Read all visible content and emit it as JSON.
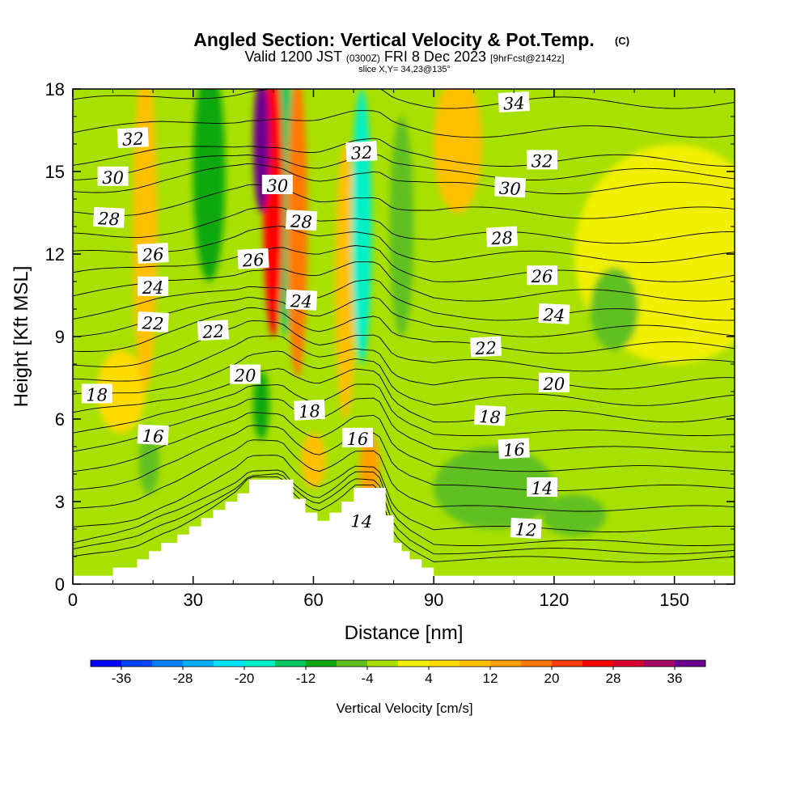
{
  "header": {
    "title": "Angled Section: Vertical Velocity & Pot.Temp.",
    "title_mark": "(C)",
    "valid_prefix": "Valid 1200 JST",
    "valid_utc": "(0300Z)",
    "valid_date": "FRI 8 Dec 2023",
    "forecast": "[9hrFcst@2142z]",
    "slice": "slice X,Y= 34,23@135°"
  },
  "chart_data": {
    "type": "heatmap",
    "xlabel": "Distance [nm]",
    "ylabel": "Height [Kft MSL]",
    "xlim": [
      0,
      165
    ],
    "ylim": [
      0,
      18
    ],
    "x_ticks": [
      0,
      30,
      60,
      90,
      120,
      150
    ],
    "y_ticks": [
      0,
      3,
      6,
      9,
      12,
      15,
      18
    ],
    "colorbar": {
      "label": "Vertical Velocity [cm/s]",
      "ticks": [
        -36,
        -28,
        -20,
        -12,
        -4,
        4,
        12,
        20,
        28,
        36
      ],
      "range": [
        -40,
        40
      ],
      "bins": [
        {
          "from": -40,
          "to": -36,
          "color": "#0000ff"
        },
        {
          "from": -36,
          "to": -32,
          "color": "#0044ff"
        },
        {
          "from": -32,
          "to": -28,
          "color": "#0080ff"
        },
        {
          "from": -28,
          "to": -24,
          "color": "#00b0ff"
        },
        {
          "from": -24,
          "to": -20,
          "color": "#00e4ff"
        },
        {
          "from": -20,
          "to": -16,
          "color": "#00f0c8"
        },
        {
          "from": -16,
          "to": -12,
          "color": "#00c860"
        },
        {
          "from": -12,
          "to": -8,
          "color": "#10a810"
        },
        {
          "from": -8,
          "to": -4,
          "color": "#60c020"
        },
        {
          "from": -4,
          "to": 0,
          "color": "#a8e000"
        },
        {
          "from": 0,
          "to": 4,
          "color": "#f0f000"
        },
        {
          "from": 4,
          "to": 8,
          "color": "#ffdc00"
        },
        {
          "from": 8,
          "to": 12,
          "color": "#ffc000"
        },
        {
          "from": 12,
          "to": 16,
          "color": "#ffa000"
        },
        {
          "from": 16,
          "to": 20,
          "color": "#ff7800"
        },
        {
          "from": 20,
          "to": 24,
          "color": "#ff3c00"
        },
        {
          "from": 24,
          "to": 28,
          "color": "#ff0000"
        },
        {
          "from": 28,
          "to": 32,
          "color": "#d80030"
        },
        {
          "from": 32,
          "to": 36,
          "color": "#a80060"
        },
        {
          "from": 36,
          "to": 40,
          "color": "#6a0090"
        }
      ]
    },
    "terrain_profile": [
      {
        "x": 0,
        "h": 0.3
      },
      {
        "x": 10,
        "h": 0.6
      },
      {
        "x": 16,
        "h": 0.9
      },
      {
        "x": 19,
        "h": 1.2
      },
      {
        "x": 22,
        "h": 1.5
      },
      {
        "x": 26,
        "h": 1.8
      },
      {
        "x": 29,
        "h": 2.1
      },
      {
        "x": 32,
        "h": 2.4
      },
      {
        "x": 35,
        "h": 2.7
      },
      {
        "x": 38,
        "h": 3.0
      },
      {
        "x": 41,
        "h": 3.3
      },
      {
        "x": 44,
        "h": 3.8
      },
      {
        "x": 52,
        "h": 3.8
      },
      {
        "x": 55,
        "h": 3.1
      },
      {
        "x": 58,
        "h": 2.6
      },
      {
        "x": 61,
        "h": 2.3
      },
      {
        "x": 64,
        "h": 2.6
      },
      {
        "x": 67,
        "h": 3.0
      },
      {
        "x": 70,
        "h": 3.5
      },
      {
        "x": 76,
        "h": 3.5
      },
      {
        "x": 78,
        "h": 2.5
      },
      {
        "x": 80,
        "h": 1.5
      },
      {
        "x": 82,
        "h": 1.2
      },
      {
        "x": 84,
        "h": 0.9
      },
      {
        "x": 87,
        "h": 0.6
      },
      {
        "x": 90,
        "h": 0.3
      },
      {
        "x": 165,
        "h": 0.3
      }
    ],
    "vertical_velocity_features": [
      {
        "x": 18,
        "h": 13,
        "wx": 3,
        "wh": 12,
        "value": 10
      },
      {
        "x": 50,
        "h": 14,
        "wx": 2.5,
        "wh": 10,
        "value": 24
      },
      {
        "x": 47,
        "h": 16,
        "wx": 2,
        "wh": 5,
        "value": 36
      },
      {
        "x": 56,
        "h": 13,
        "wx": 2.5,
        "wh": 11,
        "value": 18
      },
      {
        "x": 68,
        "h": 11,
        "wx": 2.5,
        "wh": 10,
        "value": 10
      },
      {
        "x": 34,
        "h": 15,
        "wx": 4,
        "wh": 8,
        "value": -12
      },
      {
        "x": 53,
        "h": 14,
        "wx": 2.3,
        "wh": 10,
        "value": -16
      },
      {
        "x": 72,
        "h": 13,
        "wx": 2.5,
        "wh": 10,
        "value": -20
      },
      {
        "x": 82,
        "h": 13,
        "wx": 3,
        "wh": 8,
        "value": -8
      },
      {
        "x": 47,
        "h": 6.5,
        "wx": 2,
        "wh": 2.5,
        "value": -10
      },
      {
        "x": 19,
        "h": 4.5,
        "wx": 2.5,
        "wh": 2.5,
        "value": -8
      },
      {
        "x": 60,
        "h": 4.5,
        "wx": 3,
        "wh": 2,
        "value": 8
      },
      {
        "x": 74,
        "h": 4.2,
        "wx": 2.5,
        "wh": 2.5,
        "value": 14
      },
      {
        "x": 96,
        "h": 16,
        "wx": 6,
        "wh": 5,
        "value": 8
      },
      {
        "x": 12,
        "h": 7,
        "wx": 6,
        "wh": 3,
        "value": 5
      },
      {
        "x": 135,
        "h": 10,
        "wx": 6,
        "wh": 3,
        "value": -6
      },
      {
        "x": 105,
        "h": 3.5,
        "wx": 15,
        "wh": 3,
        "value": -6
      },
      {
        "x": 125,
        "h": 2.5,
        "wx": 8,
        "wh": 1.5,
        "value": -5
      },
      {
        "x": 150,
        "h": 12,
        "wx": 25,
        "wh": 8,
        "value": 1
      }
    ],
    "potential_temperature_contours": [
      {
        "label": "12",
        "x": 113,
        "h": 2.0
      },
      {
        "label": "14",
        "x": 117,
        "h": 3.5
      },
      {
        "label": "16",
        "x": 110,
        "h": 4.9
      },
      {
        "label": "18",
        "x": 104,
        "h": 6.1
      },
      {
        "label": "20",
        "x": 120,
        "h": 7.3
      },
      {
        "label": "22",
        "x": 103,
        "h": 8.6
      },
      {
        "label": "24",
        "x": 120,
        "h": 9.8
      },
      {
        "label": "26",
        "x": 117,
        "h": 11.2
      },
      {
        "label": "28",
        "x": 107,
        "h": 12.6
      },
      {
        "label": "30",
        "x": 109,
        "h": 14.4
      },
      {
        "label": "32",
        "x": 117,
        "h": 15.4
      },
      {
        "label": "34",
        "x": 110,
        "h": 17.5
      }
    ],
    "contour_labels": [
      {
        "text": "32",
        "x": 15,
        "h": 16.2
      },
      {
        "text": "30",
        "x": 10,
        "h": 14.8
      },
      {
        "text": "28",
        "x": 9,
        "h": 13.3
      },
      {
        "text": "26",
        "x": 20,
        "h": 12.0
      },
      {
        "text": "24",
        "x": 20,
        "h": 10.8
      },
      {
        "text": "22",
        "x": 20,
        "h": 9.5
      },
      {
        "text": "22",
        "x": 35,
        "h": 9.2
      },
      {
        "text": "18",
        "x": 6,
        "h": 6.9
      },
      {
        "text": "16",
        "x": 20,
        "h": 5.4
      },
      {
        "text": "26",
        "x": 45,
        "h": 11.8
      },
      {
        "text": "30",
        "x": 51,
        "h": 14.5
      },
      {
        "text": "28",
        "x": 57,
        "h": 13.2
      },
      {
        "text": "32",
        "x": 72,
        "h": 15.7
      },
      {
        "text": "20",
        "x": 43,
        "h": 7.6
      },
      {
        "text": "24",
        "x": 57,
        "h": 10.3
      },
      {
        "text": "18",
        "x": 59,
        "h": 6.3
      },
      {
        "text": "16",
        "x": 71,
        "h": 5.3
      },
      {
        "text": "14",
        "x": 72,
        "h": 2.3
      },
      {
        "text": "34",
        "x": 110,
        "h": 17.5
      },
      {
        "text": "32",
        "x": 117,
        "h": 15.4
      },
      {
        "text": "30",
        "x": 109,
        "h": 14.4
      },
      {
        "text": "28",
        "x": 107,
        "h": 12.6
      },
      {
        "text": "26",
        "x": 117,
        "h": 11.2
      },
      {
        "text": "24",
        "x": 120,
        "h": 9.8
      },
      {
        "text": "22",
        "x": 103,
        "h": 8.6
      },
      {
        "text": "20",
        "x": 120,
        "h": 7.3
      },
      {
        "text": "18",
        "x": 104,
        "h": 6.1
      },
      {
        "text": "16",
        "x": 110,
        "h": 4.9
      },
      {
        "text": "14",
        "x": 117,
        "h": 3.5
      },
      {
        "text": "12",
        "x": 113,
        "h": 2.0
      }
    ]
  }
}
